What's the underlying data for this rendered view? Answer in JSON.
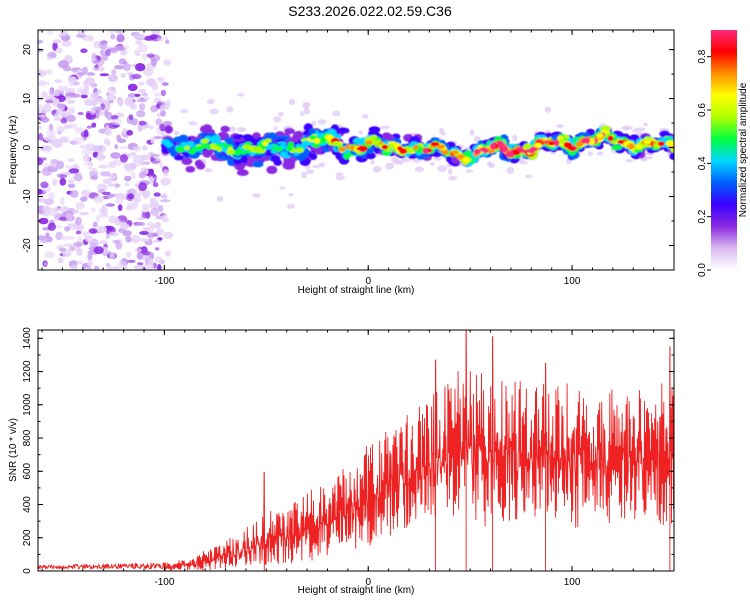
{
  "title": "S233.2026.022.02.59.C36",
  "chart_data": [
    {
      "type": "heatmap",
      "name": "spectrogram",
      "xlabel": "Height of straight line (km)",
      "ylabel": "Frequency (Hz)",
      "xlim": [
        -162,
        150
      ],
      "ylim": [
        -25,
        24
      ],
      "x_ticks": [
        -100,
        0,
        100
      ],
      "y_ticks": [
        -20,
        -10,
        0,
        10,
        20
      ],
      "colorbar": {
        "label": "Normalized spectral amplitude",
        "range": [
          0,
          0.9
        ],
        "ticks": [
          "0.0",
          "0.2",
          "0.4",
          "0.6",
          "0.8"
        ],
        "colors": [
          "#ffffff",
          "#d9b8f0",
          "#8a2be2",
          "#3a00ff",
          "#0060ff",
          "#00d8ff",
          "#00ff40",
          "#b0ff00",
          "#ffff00",
          "#ff9000",
          "#ff0000",
          "#ff2a7a"
        ]
      },
      "noise_region_x": [
        -162,
        -98
      ],
      "ridge": {
        "x": [
          -100,
          -90,
          -80,
          -70,
          -60,
          -50,
          -40,
          -30,
          -20,
          -10,
          0,
          10,
          20,
          30,
          40,
          50,
          60,
          70,
          80,
          90,
          100,
          110,
          120,
          130,
          140,
          150
        ],
        "freq": [
          0,
          0.5,
          0.5,
          -1,
          0.5,
          -0.5,
          -0.5,
          1.5,
          1,
          0,
          1,
          -0.5,
          0.5,
          -0.5,
          -1,
          -1.5,
          -0.5,
          -0.5,
          0,
          0.5,
          1,
          1.5,
          1.5,
          1,
          0.5,
          0
        ],
        "width": [
          4,
          6,
          7,
          7,
          7,
          8,
          8,
          6,
          5,
          4,
          4,
          3,
          3,
          3,
          3,
          3,
          3,
          3,
          3,
          3,
          3,
          3,
          3,
          3,
          3,
          3
        ],
        "amplitude": [
          0.35,
          0.45,
          0.5,
          0.55,
          0.5,
          0.5,
          0.45,
          0.55,
          0.6,
          0.7,
          0.75,
          0.7,
          0.7,
          0.7,
          0.65,
          0.75,
          0.85,
          0.9,
          0.8,
          0.75,
          0.75,
          0.8,
          0.75,
          0.7,
          0.65,
          0.6
        ]
      }
    },
    {
      "type": "line",
      "name": "snr",
      "xlabel": "Height of straight line (km)",
      "ylabel": "SNR (10 * v/v)",
      "xlim": [
        -162,
        150
      ],
      "ylim": [
        0,
        1450
      ],
      "x_ticks": [
        -100,
        0,
        100
      ],
      "y_ticks": [
        0,
        200,
        400,
        600,
        800,
        1000,
        1200,
        1400
      ],
      "color": "#ee2222",
      "envelope": {
        "x": [
          -162,
          -130,
          -100,
          -90,
          -80,
          -70,
          -60,
          -55,
          -50,
          -45,
          -40,
          -30,
          -20,
          -10,
          0,
          10,
          20,
          30,
          40,
          45,
          50,
          60,
          70,
          80,
          90,
          100,
          110,
          120,
          130,
          140,
          150
        ],
        "low": [
          0,
          0,
          0,
          0,
          5,
          10,
          20,
          30,
          40,
          40,
          40,
          60,
          80,
          100,
          150,
          200,
          250,
          300,
          350,
          300,
          250,
          250,
          300,
          250,
          300,
          250,
          300,
          250,
          300,
          300,
          250
        ],
        "high": [
          35,
          40,
          50,
          80,
          130,
          180,
          260,
          330,
          360,
          360,
          380,
          480,
          520,
          650,
          780,
          850,
          950,
          1050,
          1150,
          1350,
          1250,
          1200,
          1150,
          1150,
          1150,
          1150,
          1100,
          1100,
          1100,
          1150,
          1250
        ]
      },
      "peaks": [
        {
          "x": -51,
          "y": 595
        },
        {
          "x": 33,
          "y": 1270
        },
        {
          "x": 48,
          "y": 1450
        },
        {
          "x": 61,
          "y": 1410
        },
        {
          "x": 87,
          "y": 1250
        },
        {
          "x": 148,
          "y": 1350
        }
      ],
      "approx_samples": 1250
    }
  ]
}
